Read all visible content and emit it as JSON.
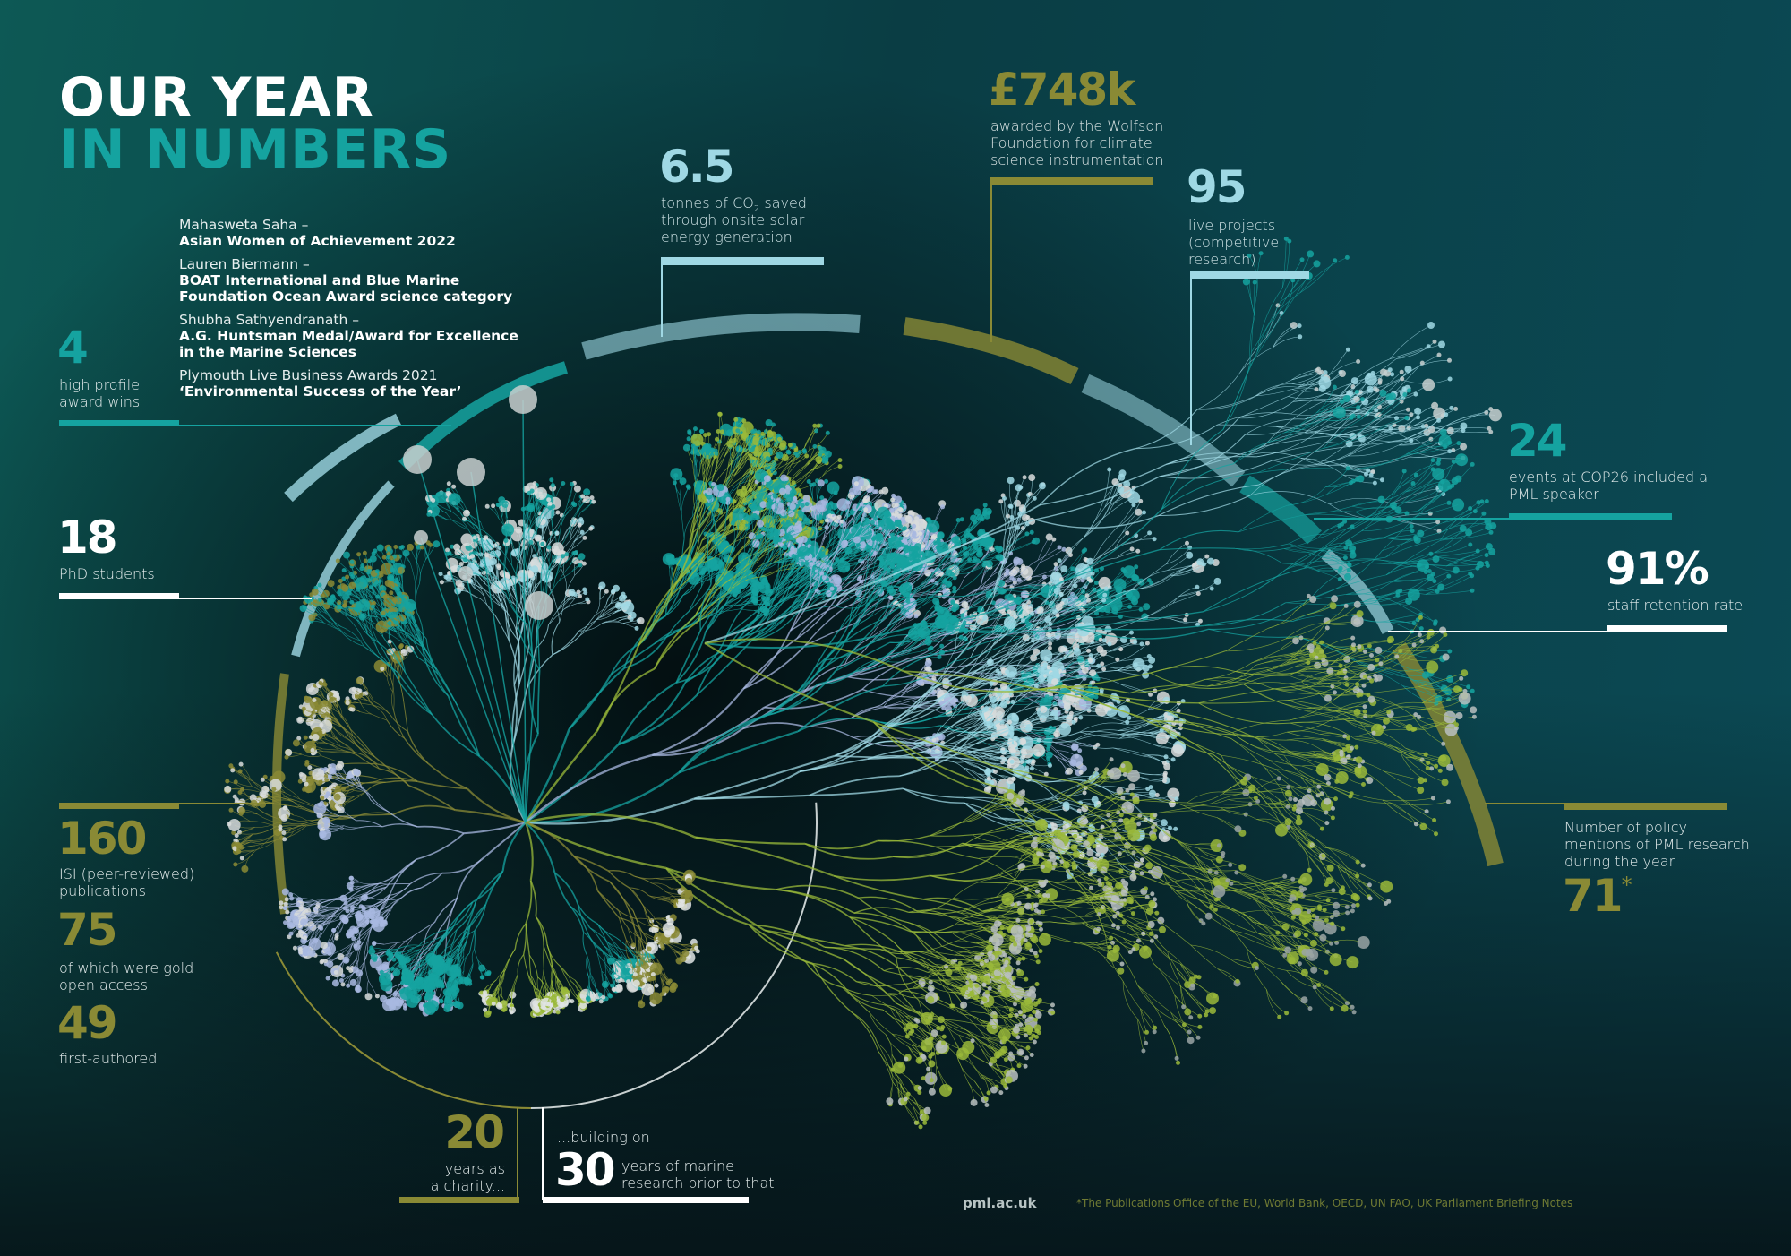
{
  "title": {
    "line1": "OUR YEAR",
    "line2": "IN NUMBERS"
  },
  "colors": {
    "teal": "#15a3a0",
    "olive": "#8a8a35",
    "light_blue": "#9fd8e4",
    "white": "#ffffff",
    "green": "#9ab93a",
    "lavender": "#a8b8e0"
  },
  "awards": {
    "number": "4",
    "label": [
      "high profile",
      "award wins"
    ],
    "items": [
      {
        "name": "Mahasweta Saha –",
        "award": [
          "Asian Women of Achievement 2022"
        ]
      },
      {
        "name": "Lauren Biermann –",
        "award": [
          "BOAT International and Blue Marine",
          "Foundation Ocean Award science category"
        ]
      },
      {
        "name": "Shubha Sathyendranath –",
        "award": [
          "A.G. Huntsman Medal/Award for Excellence",
          "in the Marine Sciences"
        ]
      },
      {
        "name": "Plymouth Live Business Awards 2021",
        "award": [
          "‘Environmental Success of the Year’"
        ]
      }
    ]
  },
  "phd": {
    "number": "18",
    "label": "PhD students"
  },
  "publications": {
    "number": "160",
    "label": [
      "ISI (peer-reviewed)",
      "publications"
    ],
    "gold_number": "75",
    "gold_label": [
      "of which were gold",
      "open access"
    ],
    "first_number": "49",
    "first_label": "first-authored"
  },
  "charity": {
    "number": "20",
    "label": [
      "years as",
      "a charity..."
    ]
  },
  "marine": {
    "intro": "...building on",
    "number": "30",
    "label": [
      "years of marine",
      "research prior to that"
    ]
  },
  "co2": {
    "number": "6.5",
    "label_pre": "tonnes of CO",
    "label_sub": "2",
    "label_post": " saved",
    "label": [
      "through onsite solar",
      "energy generation"
    ]
  },
  "wolfson": {
    "number": "£748k",
    "label": [
      "awarded by the Wolfson",
      "Foundation for climate",
      "science instrumentation"
    ]
  },
  "projects": {
    "number": "95",
    "label": [
      "live projects",
      "(competitive",
      "research)"
    ]
  },
  "cop26": {
    "number": "24",
    "label": [
      "events at COP26 included a",
      "PML speaker"
    ]
  },
  "retention": {
    "number": "91%",
    "label": "staff retention rate"
  },
  "policy": {
    "label": [
      "Number of policy",
      "mentions of PML research",
      "during the year"
    ],
    "number": "71",
    "asterisk": "*"
  },
  "footer": {
    "url": "pml.ac.uk",
    "footnote": "*The Publications Office of the EU, World Bank, OECD, UN FAO, UK Parliament Briefing Notes"
  }
}
